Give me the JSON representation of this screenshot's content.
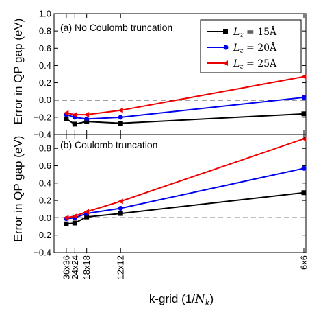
{
  "chart_data": [
    {
      "type": "line",
      "title": "(a) No Coulomb truncation",
      "ylabel": "Error in QP gap (eV)",
      "xlabel": "k-grid (1/N_k)",
      "ylim": [
        -0.4,
        1.0
      ],
      "yticks": [
        "−0.4",
        "−0.2",
        "0.0",
        "0.2",
        "0.4",
        "0.6",
        "0.8",
        "1.0"
      ],
      "x": [
        0.0007716,
        0.0017361,
        0.0030864,
        0.0069444,
        0.0277778
      ],
      "xtick_labels": [
        "36x36",
        "24x24",
        "18x18",
        "12x12",
        "6x6"
      ],
      "reference_line": 0.0,
      "series": [
        {
          "name": "L_z = 15Å",
          "color": "#000000",
          "marker": "square",
          "values": [
            -0.22,
            -0.28,
            -0.25,
            -0.27,
            -0.16
          ]
        },
        {
          "name": "L_z = 20Å",
          "color": "#0000ee",
          "marker": "circle",
          "values": [
            -0.17,
            -0.2,
            -0.22,
            -0.2,
            0.03
          ]
        },
        {
          "name": "L_z = 25Å",
          "color": "#ee0000",
          "marker": "triangle-left",
          "values": [
            -0.15,
            -0.17,
            -0.17,
            -0.12,
            0.27
          ]
        }
      ]
    },
    {
      "type": "line",
      "title": "(b) Coulomb truncation",
      "ylabel": "Error in QP gap (eV)",
      "xlabel": "k-grid (1/N_k)",
      "ylim": [
        -0.4,
        1.0
      ],
      "yticks": [
        "−0.4",
        "−0.2",
        "0.0",
        "0.2",
        "0.4",
        "0.6",
        "0.8"
      ],
      "x": [
        0.0007716,
        0.0017361,
        0.0030864,
        0.0069444,
        0.0277778
      ],
      "xtick_labels": [
        "36x36",
        "24x24",
        "18x18",
        "12x12",
        "6x6"
      ],
      "reference_line": 0.0,
      "series": [
        {
          "name": "L_z = 15Å",
          "color": "#000000",
          "marker": "square",
          "values": [
            -0.07,
            -0.06,
            0.01,
            0.05,
            0.29
          ]
        },
        {
          "name": "L_z = 20Å",
          "color": "#0000ee",
          "marker": "circle",
          "values": [
            -0.01,
            0.0,
            0.05,
            0.11,
            0.57
          ]
        },
        {
          "name": "L_z = 25Å",
          "color": "#ee0000",
          "marker": "triangle-left",
          "values": [
            0.0,
            0.02,
            0.07,
            0.19,
            0.91
          ]
        }
      ]
    }
  ],
  "legend": {
    "placement": "top-right",
    "entries": [
      {
        "prefix": "L",
        "sub": "z",
        "rest": " = 15Å"
      },
      {
        "prefix": "L",
        "sub": "z",
        "rest": " = 20Å"
      },
      {
        "prefix": "L",
        "sub": "z",
        "rest": " = 25Å"
      }
    ]
  },
  "labels": {
    "ylabel_a": "Error in QP gap (eV)",
    "ylabel_b": "Error in QP gap (eV)",
    "xlabel_main": "k-grid (1/",
    "xlabel_var": "N",
    "xlabel_sub": "k",
    "xlabel_close": ")"
  }
}
